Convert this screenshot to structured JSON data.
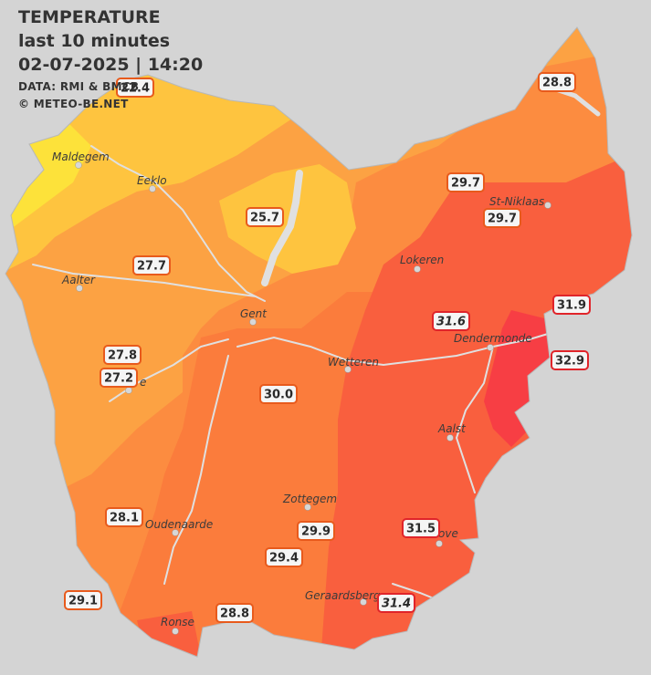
{
  "header": {
    "title": "TEMPERATURE",
    "period": "last 10 minutes",
    "datetime": "02-07-2025  |  14:20",
    "source": "DATA: RMI & BMCB",
    "copyright": "© METEO-BE.NET"
  },
  "colors": {
    "background": "#d4d4d4",
    "zone_lt26": "#fde23a",
    "zone_26_27": "#fec43f",
    "zone_27_28": "#fca243",
    "zone_28_29": "#fc8c40",
    "zone_29_30": "#fb7c3c",
    "zone_30_31": "#f95f3e",
    "zone_gt31": "#f73e44",
    "waterway": "#e0e0e0",
    "badge_border": "#e85a1c",
    "badge_border_hot": "#e0242a",
    "badge_fill": "#f5f5f5"
  },
  "map": {
    "cities": [
      {
        "name": "Maldegem"
      },
      {
        "name": "Eeklo"
      },
      {
        "name": "Aalter"
      },
      {
        "name": "Gent"
      },
      {
        "name": "St-Niklaas"
      },
      {
        "name": "Lokeren"
      },
      {
        "name": "Dendermonde"
      },
      {
        "name": "Wetteren"
      },
      {
        "name": "Aalst"
      },
      {
        "name": "Zottegem"
      },
      {
        "name": "Oudenaarde"
      },
      {
        "name": "Ronse"
      },
      {
        "name": "Geraardsbergen"
      },
      {
        "name": "e"
      },
      {
        "name": "ove"
      }
    ],
    "readings": [
      {
        "value": "22.4",
        "level": "warm"
      },
      {
        "value": "28.8",
        "level": "warm"
      },
      {
        "value": "29.7",
        "level": "warm"
      },
      {
        "value": "29.7",
        "level": "warm"
      },
      {
        "value": "25.7",
        "level": "warm"
      },
      {
        "value": "27.7",
        "level": "warm"
      },
      {
        "value": "31.9",
        "level": "hot"
      },
      {
        "value": "31.6",
        "level": "hot",
        "style": "italic"
      },
      {
        "value": "32.9",
        "level": "hot"
      },
      {
        "value": "27.8",
        "level": "warm"
      },
      {
        "value": "27.2",
        "level": "warm"
      },
      {
        "value": "30.0",
        "level": "warm"
      },
      {
        "value": "28.1",
        "level": "warm"
      },
      {
        "value": "29.9",
        "level": "warm"
      },
      {
        "value": "31.5",
        "level": "hot"
      },
      {
        "value": "29.4",
        "level": "warm"
      },
      {
        "value": "29.1",
        "level": "warm"
      },
      {
        "value": "28.8",
        "level": "warm"
      },
      {
        "value": "31.4",
        "level": "hot",
        "style": "italic"
      }
    ]
  }
}
